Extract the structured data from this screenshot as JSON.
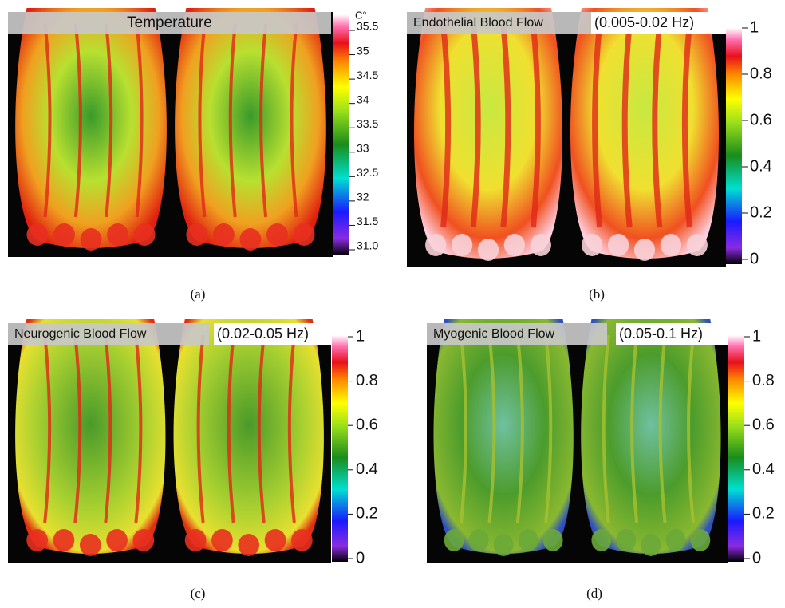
{
  "panels": [
    {
      "title": "Temperature",
      "caption": "(a)",
      "unit": "C°",
      "ticks": [
        "35.5",
        "35",
        "34.5",
        "34",
        "33.5",
        "33",
        "32.5",
        "32",
        "31.5",
        "31.0"
      ]
    },
    {
      "title": "Endothelial Blood Flow",
      "range": "(0.005-0.02 Hz)",
      "caption": "(b)",
      "ticks": [
        "1",
        "0.8",
        "0.6",
        "0.4",
        "0.2",
        "0"
      ]
    },
    {
      "title": "Neurogenic Blood Flow",
      "range": "(0.02-0.05 Hz)",
      "caption": "(c)",
      "ticks": [
        "1",
        "0.8",
        "0.6",
        "0.4",
        "0.2",
        "0"
      ]
    },
    {
      "title": "Myogenic Blood Flow",
      "range": "(0.05-0.1 Hz)",
      "caption": "(d)",
      "ticks": [
        "1",
        "0.8",
        "0.6",
        "0.4",
        "0.2",
        "0"
      ]
    }
  ]
}
